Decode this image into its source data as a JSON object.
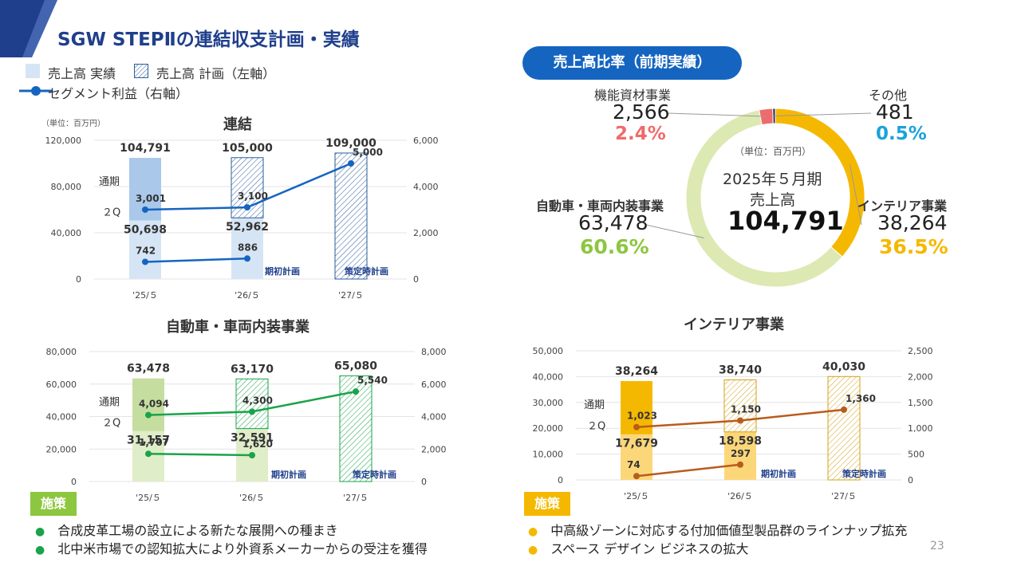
{
  "title": "SGW STEPⅡの連結収支計画・実績",
  "page_number": "23",
  "legend": {
    "actual": "売上高 実績",
    "plan": "売上高 計画（左軸）",
    "profit": "セグメント利益（右軸）"
  },
  "ratio_section": {
    "title": "売上高比率（前期実績）",
    "center_unit": "（単位：百万円）",
    "center_line1": "2025年５月期",
    "center_line2": "売上高",
    "center_total": "104,791"
  },
  "colors": {
    "navy": "#1f3f8c",
    "blue_actual": "#a9c8ea",
    "blue_light": "#d6e5f5",
    "blue_line": "#1565c0",
    "green_actual": "#c5dea0",
    "green_light": "#e0edc9",
    "green_line": "#1aa34a",
    "yellow_actual": "#f5b800",
    "yellow_light": "#fcd77a",
    "brown_line": "#b85c1c",
    "pink": "#ef6b6b",
    "cyan": "#1aa3d9"
  },
  "chart_data": [
    {
      "id": "consolidated",
      "type": "bar",
      "title": "連結",
      "unit_label": "（単位：百万円）",
      "categories": [
        "'25/５",
        "'26/５",
        "'27/５"
      ],
      "ylim": [
        0,
        120000
      ],
      "yticks": [
        "0",
        "40,000",
        "80,000",
        "120,000"
      ],
      "y2lim": [
        0,
        6000
      ],
      "y2ticks": [
        "0",
        "2,000",
        "4,000",
        "6,000"
      ],
      "full_year": [
        104791,
        105000,
        109000
      ],
      "full_year_labels": [
        "104,791",
        "105,000",
        "109,000"
      ],
      "half_year": [
        50698,
        52962,
        null
      ],
      "half_year_labels": [
        "50,698",
        "52,962",
        ""
      ],
      "bar_kind": [
        "actual",
        "plan",
        "plan"
      ],
      "profit_full": [
        3001,
        3100,
        5000
      ],
      "profit_full_labels": [
        "3,001",
        "3,100",
        "5,000"
      ],
      "profit_half": [
        742,
        886
      ],
      "profit_half_labels": [
        "742",
        "886"
      ],
      "label_full": "通期",
      "label_half": "２Q",
      "note_initial": "期初計画",
      "note_formulation": "策定時計画"
    },
    {
      "id": "automotive",
      "type": "bar",
      "title": "自動車・車両内装事業",
      "categories": [
        "'25/５",
        "'26/５",
        "'27/５"
      ],
      "ylim": [
        0,
        80000
      ],
      "yticks": [
        "0",
        "20,000",
        "40,000",
        "60,000",
        "80,000"
      ],
      "y2lim": [
        0,
        8000
      ],
      "y2ticks": [
        "0",
        "2,000",
        "4,000",
        "6,000",
        "8,000"
      ],
      "full_year": [
        63478,
        63170,
        65080
      ],
      "full_year_labels": [
        "63,478",
        "63,170",
        "65,080"
      ],
      "half_year": [
        31157,
        32591,
        null
      ],
      "half_year_labels": [
        "31,157",
        "32,591",
        ""
      ],
      "bar_kind": [
        "actual",
        "plan",
        "plan"
      ],
      "profit_full": [
        4094,
        4300,
        5540
      ],
      "profit_full_labels": [
        "4,094",
        "4,300",
        "5,540"
      ],
      "profit_half": [
        1707,
        1620
      ],
      "profit_half_labels": [
        "1,707",
        "1,620"
      ],
      "label_full": "通期",
      "label_half": "２Q",
      "note_initial": "期初計画",
      "note_formulation": "策定時計画"
    },
    {
      "id": "interior",
      "type": "bar",
      "title": "インテリア事業",
      "categories": [
        "'25/５",
        "'26/５",
        "'27/５"
      ],
      "ylim": [
        0,
        50000
      ],
      "yticks": [
        "0",
        "10,000",
        "20,000",
        "30,000",
        "40,000",
        "50,000"
      ],
      "y2lim": [
        0,
        2500
      ],
      "y2ticks": [
        "0",
        "500",
        "1,000",
        "1,500",
        "2,000",
        "2,500"
      ],
      "full_year": [
        38264,
        38740,
        40030
      ],
      "full_year_labels": [
        "38,264",
        "38,740",
        "40,030"
      ],
      "half_year": [
        17679,
        18598,
        null
      ],
      "half_year_labels": [
        "17,679",
        "18,598",
        ""
      ],
      "bar_kind": [
        "actual",
        "plan",
        "plan"
      ],
      "profit_full": [
        1023,
        1150,
        1360
      ],
      "profit_full_labels": [
        "1,023",
        "1,150",
        "1,360"
      ],
      "profit_half": [
        74,
        297
      ],
      "profit_half_labels": [
        "74",
        "297"
      ],
      "label_full": "通期",
      "label_half": "２Q",
      "note_initial": "期初計画",
      "note_formulation": "策定時計画"
    },
    {
      "id": "sales_ratio",
      "type": "pie",
      "title": "売上高比率（前期実績）",
      "slices": [
        {
          "name": "インテリア事業",
          "value": 38264,
          "value_label": "38,264",
          "percent": 36.5,
          "percent_label": "36.5%"
        },
        {
          "name": "自動車・車両内装事業",
          "value": 63478,
          "value_label": "63,478",
          "percent": 60.6,
          "percent_label": "60.6%"
        },
        {
          "name": "機能資材事業",
          "value": 2566,
          "value_label": "2,566",
          "percent": 2.4,
          "percent_label": "2.4%"
        },
        {
          "name": "その他",
          "value": 481,
          "value_label": "481",
          "percent": 0.5,
          "percent_label": "0.5%"
        }
      ]
    }
  ],
  "measures_left": {
    "badge": "施策",
    "items": [
      "合成皮革工場の設立による新たな展開への種まき",
      "北中米市場での認知拡大により外資系メーカーからの受注を獲得"
    ]
  },
  "measures_right": {
    "badge": "施策",
    "items": [
      "中高級ゾーンに対応する付加価値型製品群のラインナップ拡充",
      "スペース デザイン ビジネスの拡大"
    ]
  }
}
